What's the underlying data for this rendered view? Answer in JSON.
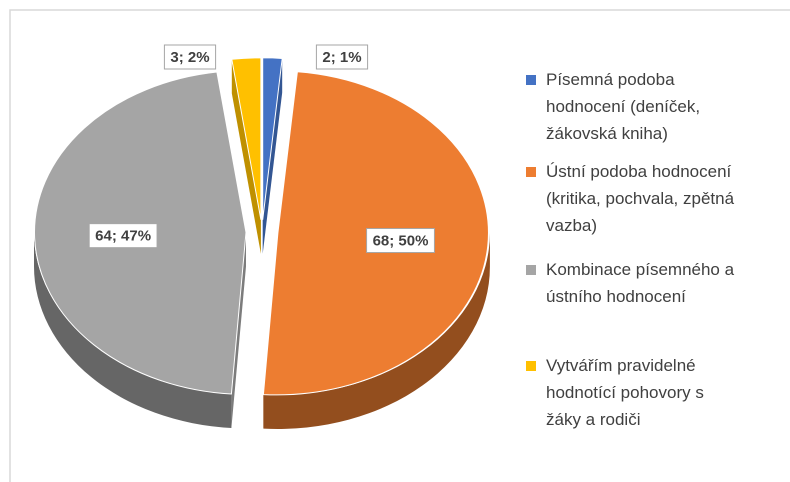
{
  "chart_data": {
    "type": "pie",
    "categories": [
      "Písemná podoba hodnocení (deníček, žákovská kniha)",
      "Ústní podoba hodnocení (kritika, pochvala, zpětná vazba)",
      "Kombinace písemného a ústního hodnocení",
      "Vytvářím pravidelné hodnotící pohovory s žáky a rodiči"
    ],
    "values": [
      2,
      68,
      64,
      3
    ],
    "value_labels": [
      "2; 1%",
      "68; 50%",
      "64; 47%",
      "3; 2%"
    ],
    "colors": [
      "#4472c4",
      "#ed7d31",
      "#a5a5a5",
      "#ffc000"
    ],
    "legend": "right"
  }
}
